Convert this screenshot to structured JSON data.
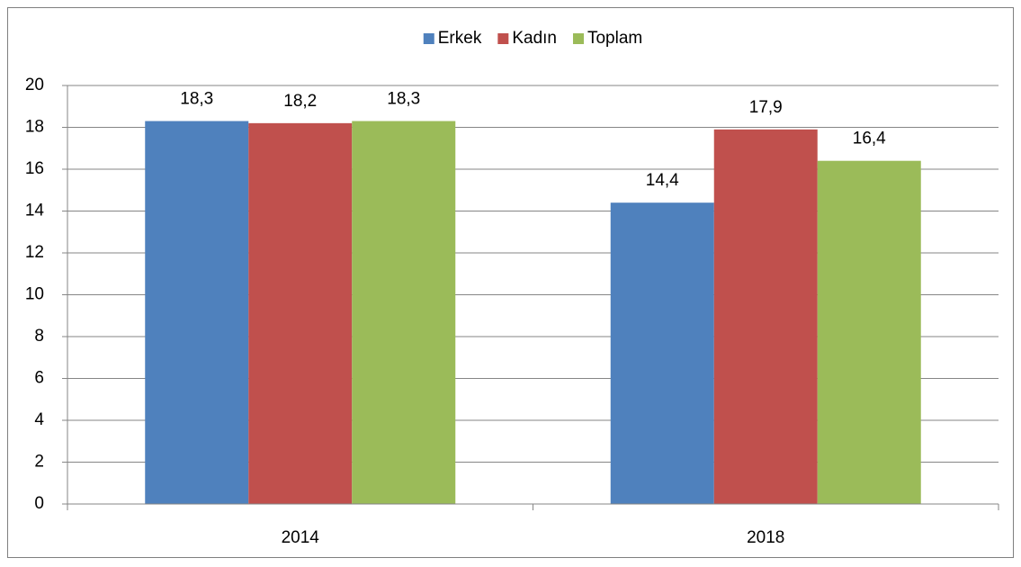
{
  "chart_data": {
    "type": "bar",
    "categories": [
      "2014",
      "2018"
    ],
    "series": [
      {
        "name": "Erkek",
        "color": "#4f81bd",
        "values": [
          18.3,
          14.4
        ],
        "value_labels": [
          "18,3",
          "14,4"
        ]
      },
      {
        "name": "Kadın",
        "color": "#c0504d",
        "values": [
          18.2,
          17.9
        ],
        "value_labels": [
          "18,2",
          "17,9"
        ]
      },
      {
        "name": "Toplam",
        "color": "#9bbb59",
        "values": [
          18.3,
          16.4
        ],
        "value_labels": [
          "18,3",
          "16,4"
        ]
      }
    ],
    "ylim": [
      0,
      20
    ],
    "yticks": [
      0,
      2,
      4,
      6,
      8,
      10,
      12,
      14,
      16,
      18,
      20
    ],
    "grid": true,
    "legend": "top"
  }
}
